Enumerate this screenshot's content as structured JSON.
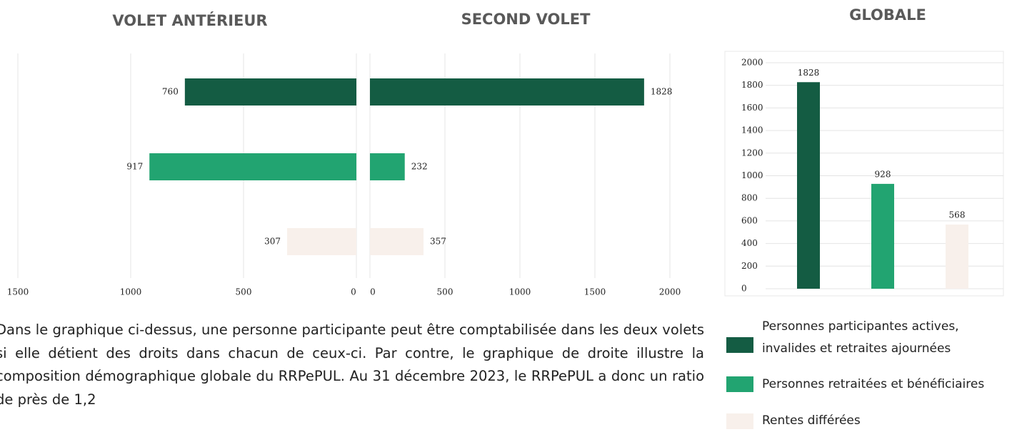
{
  "chart_data": [
    {
      "type": "bar",
      "orientation": "horizontal",
      "x_reversed": true,
      "title": "VOLET ANTÉRIEUR",
      "categories": [
        null,
        null,
        null
      ],
      "values": [
        760,
        917,
        307
      ],
      "colors": [
        "#145c43",
        "#22a471",
        "#f8f0eb"
      ],
      "xlim": [
        0,
        1500
      ],
      "xticks": [
        0,
        500,
        1000,
        1500
      ],
      "grid": true
    },
    {
      "type": "bar",
      "orientation": "horizontal",
      "x_reversed": false,
      "title": "SECOND VOLET",
      "categories": [
        null,
        null,
        null
      ],
      "values": [
        1828,
        232,
        357
      ],
      "colors": [
        "#145c43",
        "#22a471",
        "#f8f0eb"
      ],
      "xlim": [
        0,
        2000
      ],
      "xticks": [
        0,
        500,
        1000,
        1500,
        2000
      ],
      "grid": true
    },
    {
      "type": "bar",
      "orientation": "vertical",
      "title": "GLOBALE",
      "categories": [
        null,
        null,
        null
      ],
      "values": [
        1828,
        928,
        568
      ],
      "colors": [
        "#145c43",
        "#22a471",
        "#f8f0eb"
      ],
      "ylim": [
        0,
        2000
      ],
      "yticks": [
        0,
        200,
        400,
        600,
        800,
        1000,
        1200,
        1400,
        1600,
        1800,
        2000
      ],
      "grid": true
    }
  ],
  "legend": [
    {
      "name": "Personnes participantes actives, invalides et retraites ajournées",
      "color": "#145c43"
    },
    {
      "name": "Personnes retraitées et bénéficiaires",
      "color": "#22a471"
    },
    {
      "name": "Rentes différées",
      "color": "#f8f0eb"
    }
  ],
  "paragraph": "Dans le graphique ci-dessus, une personne participante peut être comptabilisée dans les deux volets si elle détient des droits dans chacun de ceux-ci. Par contre, le graphique de droite illustre la composition démographique globale du RRPePUL. Au 31 décembre 2023, le RRPePUL a donc un ratio de près de 1,2"
}
